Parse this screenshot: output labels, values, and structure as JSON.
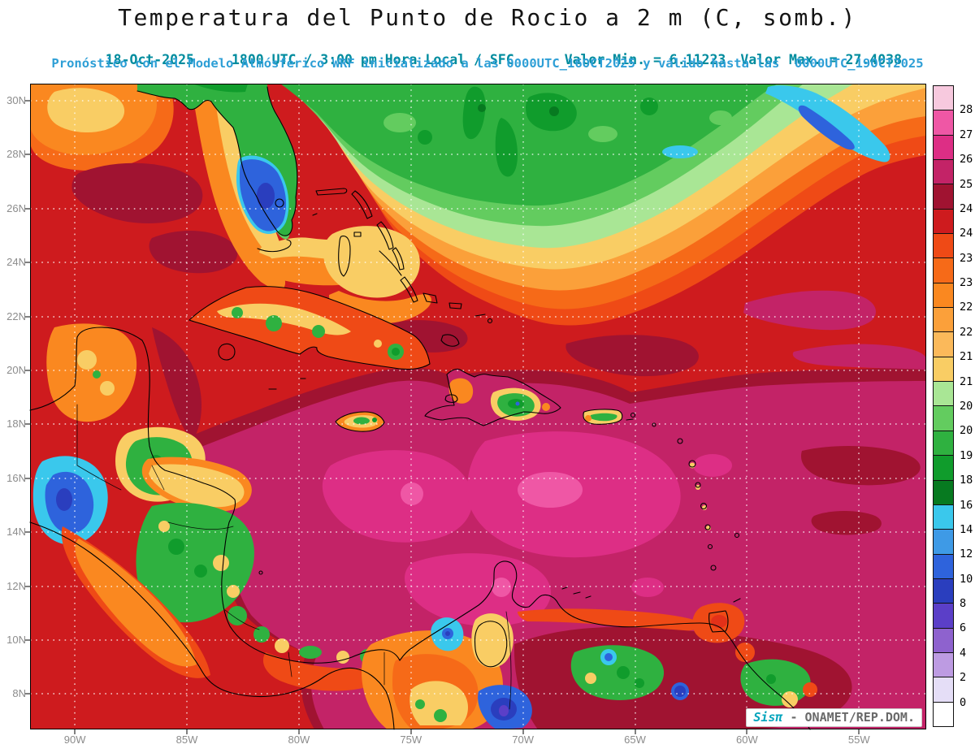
{
  "header": {
    "title": "Temperatura del Punto de Rocio a 2 m (C, somb.)",
    "date": "18-Oct-2025",
    "time_info": "1800 UTC / 3:00 pm Hora Local / SFC",
    "min_label": "Valor Min. = 6.11223",
    "max_label": "Valor Max. = 27.4038",
    "forecast_line": "Pronóstico con el Modelo Atmósferico WRF inicializado a las 0000UTC_16OCT2025 y válido hasta las  0000UTC_19OCT2025"
  },
  "watermark": {
    "brand": "Sisπ",
    "org": " - ONAMET/REP.DOM."
  },
  "axes": {
    "lat_ticks": [
      {
        "label": "30N",
        "value": 30
      },
      {
        "label": "28N",
        "value": 28
      },
      {
        "label": "26N",
        "value": 26
      },
      {
        "label": "24N",
        "value": 24
      },
      {
        "label": "22N",
        "value": 22
      },
      {
        "label": "20N",
        "value": 20
      },
      {
        "label": "18N",
        "value": 18
      },
      {
        "label": "16N",
        "value": 16
      },
      {
        "label": "14N",
        "value": 14
      },
      {
        "label": "12N",
        "value": 12
      },
      {
        "label": "10N",
        "value": 10
      },
      {
        "label": "8N",
        "value": 8
      }
    ],
    "lon_ticks": [
      {
        "label": "90W",
        "value": 90
      },
      {
        "label": "85W",
        "value": 85
      },
      {
        "label": "80W",
        "value": 80
      },
      {
        "label": "75W",
        "value": 75
      },
      {
        "label": "70W",
        "value": 70
      },
      {
        "label": "65W",
        "value": 65
      },
      {
        "label": "60W",
        "value": 60
      },
      {
        "label": "55W",
        "value": 55
      }
    ]
  },
  "colorbar": {
    "bands": [
      {
        "color": "#F7C9DE",
        "label": "28"
      },
      {
        "color": "#EF57A5",
        "label": "27"
      },
      {
        "color": "#DD2E85",
        "label": "26"
      },
      {
        "color": "#C32367",
        "label": "25"
      },
      {
        "color": "#A01331",
        "label": "24.5"
      },
      {
        "color": "#CE1B1E",
        "label": "24"
      },
      {
        "color": "#EF4A16",
        "label": "23.5"
      },
      {
        "color": "#F66A18",
        "label": "23"
      },
      {
        "color": "#FA8820",
        "label": "22.5"
      },
      {
        "color": "#FBA03A",
        "label": "22"
      },
      {
        "color": "#FBB95A",
        "label": "21.5"
      },
      {
        "color": "#F9CD64",
        "label": "21"
      },
      {
        "color": "#A9E695",
        "label": "20.5"
      },
      {
        "color": "#63CC5F",
        "label": "20"
      },
      {
        "color": "#2FB140",
        "label": "19"
      },
      {
        "color": "#109C2C",
        "label": "18"
      },
      {
        "color": "#077A20",
        "label": "16"
      },
      {
        "color": "#3AC8EC",
        "label": "14"
      },
      {
        "color": "#3E9AE6",
        "label": "12"
      },
      {
        "color": "#2E63DC",
        "label": "10"
      },
      {
        "color": "#2A3EBE",
        "label": "8"
      },
      {
        "color": "#5B3FC8",
        "label": "6"
      },
      {
        "color": "#8E62CE",
        "label": "4"
      },
      {
        "color": "#BD9BE2",
        "label": "2"
      },
      {
        "color": "#E5DEF7",
        "label": "0"
      },
      {
        "color": "#FFFFFF",
        "label": ""
      }
    ]
  },
  "chart_data": {
    "type": "heatmap",
    "title": "Temperatura del Punto de Rocio a 2 m (C, somb.)",
    "variable": "2 m dew point temperature (shaded)",
    "units": "C",
    "model": "WRF",
    "initialized": "0000UTC_16OCT2025",
    "valid_until": "0000UTC_19OCT2025",
    "valid_time": "18-Oct-2025 1800 UTC / 3:00 pm Hora Local / SFC",
    "value_min": 6.11223,
    "value_max": 27.4038,
    "lon_ticks_deg_west": [
      90,
      85,
      80,
      75,
      70,
      65,
      60,
      55
    ],
    "lat_ticks_deg_north": [
      8,
      10,
      12,
      14,
      16,
      18,
      20,
      22,
      24,
      26,
      28,
      30
    ],
    "contour_levels": [
      0,
      2,
      4,
      6,
      8,
      10,
      12,
      14,
      16,
      18,
      19,
      20,
      20.5,
      21,
      21.5,
      22,
      22.5,
      23,
      23.5,
      24,
      24.5,
      25,
      26,
      27,
      28
    ],
    "palette_low_to_high": [
      "#FFFFFF",
      "#E5DEF7",
      "#BD9BE2",
      "#8E62CE",
      "#5B3FC8",
      "#2A3EBE",
      "#2E63DC",
      "#3E9AE6",
      "#3AC8EC",
      "#077A20",
      "#109C2C",
      "#2FB140",
      "#63CC5F",
      "#A9E695",
      "#F9CD64",
      "#FBB95A",
      "#FBA03A",
      "#FA8820",
      "#F66A18",
      "#EF4A16",
      "#CE1B1E",
      "#A01331",
      "#C32367",
      "#DD2E85",
      "#EF57A5",
      "#F7C9DE"
    ],
    "legend_position": "right",
    "grid": "dotted-white",
    "field_summary": [
      {
        "region": "Open NW Atlantic north of 26N (75W-58W)",
        "approx_value_C": "19-21"
      },
      {
        "region": "Gulf of Mexico (top left)",
        "approx_value_C": "23-25 with 22-23 patches"
      },
      {
        "region": "Florida peninsula interior",
        "approx_value_C": "10-16"
      },
      {
        "region": "Bahamas transition arc",
        "approx_value_C": "21-23"
      },
      {
        "region": "Central Atlantic 20N-25N",
        "approx_value_C": "23.5-24.5"
      },
      {
        "region": "Caribbean Sea 12N-19N",
        "approx_value_C": "25-27"
      },
      {
        "region": "Cuba spine",
        "approx_value_C": "20-23"
      },
      {
        "region": "Hispaniola central mountains",
        "approx_value_C": "18-21"
      },
      {
        "region": "Guatemala highlands",
        "approx_value_C": "8-14"
      },
      {
        "region": "Honduras-Nicaragua interior",
        "approx_value_C": "19-21"
      },
      {
        "region": "Colombia interior (bottom center)",
        "approx_value_C": "21-23.5"
      },
      {
        "region": "Venezuela Andes spots",
        "approx_value_C": "8-14"
      }
    ]
  }
}
